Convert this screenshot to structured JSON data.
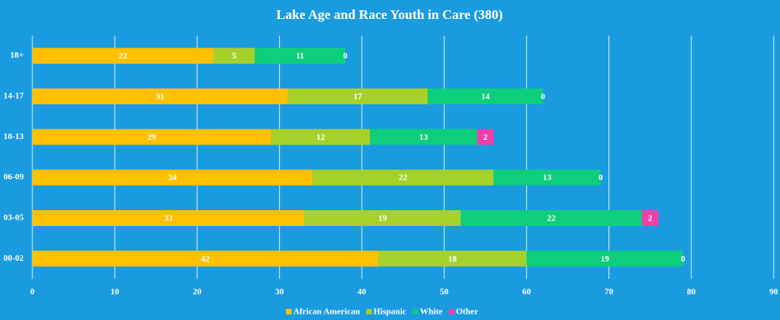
{
  "chart_data": {
    "type": "stacked_bar_horizontal",
    "title": "Lake Age and Race Youth in Care (380)",
    "categories": [
      "18+",
      "14-17",
      "10-13",
      "06-09",
      "03-05",
      "00-02"
    ],
    "series": [
      {
        "name": "African American",
        "color": "#ffc000",
        "values": [
          22,
          31,
          29,
          34,
          33,
          42
        ]
      },
      {
        "name": "Hispanic",
        "color": "#a6d12a",
        "values": [
          5,
          17,
          12,
          22,
          19,
          18
        ]
      },
      {
        "name": "White",
        "color": "#0dce7b",
        "values": [
          11,
          14,
          13,
          13,
          22,
          19
        ]
      },
      {
        "name": "Other",
        "color": "#f03fa7",
        "values": [
          0,
          0,
          2,
          0,
          2,
          0
        ]
      }
    ],
    "xlim": [
      0,
      90
    ],
    "xticks": [
      0,
      10,
      20,
      30,
      40,
      50,
      60,
      70,
      80,
      90
    ],
    "grid": true,
    "legend": "bottom"
  }
}
